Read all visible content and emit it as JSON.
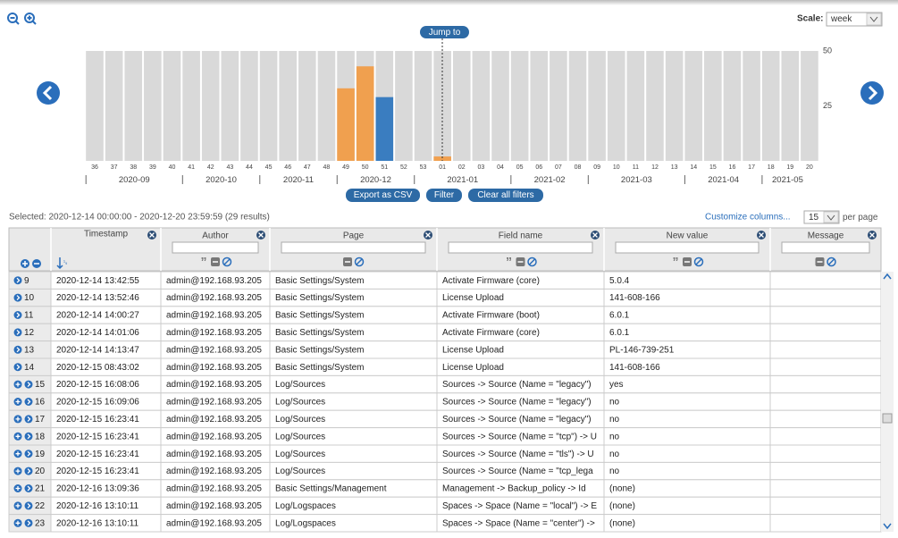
{
  "toolbar": {
    "scale_label": "Scale:",
    "scale": "week"
  },
  "timeline": {
    "jump_to": "Jump to",
    "ylim": [
      0,
      50
    ],
    "yticks": [
      50,
      25
    ],
    "weeks": [
      "36",
      "37",
      "38",
      "39",
      "40",
      "41",
      "42",
      "43",
      "44",
      "45",
      "46",
      "47",
      "48",
      "49",
      "50",
      "51",
      "52",
      "53",
      "01",
      "02",
      "03",
      "04",
      "05",
      "06",
      "07",
      "08",
      "09",
      "10",
      "11",
      "12",
      "13",
      "14",
      "15",
      "16",
      "17",
      "18",
      "19",
      "20"
    ],
    "counts": [
      0,
      0,
      0,
      0,
      0,
      0,
      0,
      0,
      0,
      0,
      0,
      0,
      0,
      33,
      43,
      29,
      0,
      0,
      2,
      0,
      0,
      0,
      0,
      0,
      0,
      0,
      0,
      0,
      0,
      0,
      0,
      0,
      0,
      0,
      0,
      0,
      0,
      0
    ],
    "color": "#f0a04f",
    "selected_week": "51",
    "selected_color": "#3a7dc0",
    "months": [
      "2020-09",
      "2020-10",
      "2020-11",
      "2020-12",
      "2021-01",
      "2021-02",
      "2021-03",
      "2021-04",
      "2021-05"
    ]
  },
  "buttons": [
    "Export as CSV",
    "Filter",
    "Clear all filters"
  ],
  "status": {
    "selection": "Selected: 2020-12-14 00:00:00 - 2020-12-20 23:59:59 (29 results)",
    "customize": "Customize columns...",
    "page_size": "15",
    "per_page": "per page"
  },
  "table": {
    "columns": [
      "Timestamp",
      "Author",
      "Page",
      "Field name",
      "New value",
      "Message"
    ],
    "rows": [
      {
        "id": "9",
        "add": false,
        "cells": [
          "2020-12-14 13:42:55",
          "admin@192.168.93.205",
          "Basic Settings/System",
          "Activate Firmware (core)",
          "5.0.4"
        ]
      },
      {
        "id": "10",
        "add": false,
        "cells": [
          "2020-12-14 13:52:46",
          "admin@192.168.93.205",
          "Basic Settings/System",
          "License Upload",
          "141-608-166"
        ]
      },
      {
        "id": "11",
        "add": false,
        "cells": [
          "2020-12-14 14:00:27",
          "admin@192.168.93.205",
          "Basic Settings/System",
          "Activate Firmware (boot)",
          "6.0.1"
        ]
      },
      {
        "id": "12",
        "add": false,
        "cells": [
          "2020-12-14 14:01:06",
          "admin@192.168.93.205",
          "Basic Settings/System",
          "Activate Firmware (core)",
          "6.0.1"
        ]
      },
      {
        "id": "13",
        "add": false,
        "cells": [
          "2020-12-14 14:13:47",
          "admin@192.168.93.205",
          "Basic Settings/System",
          "License Upload",
          "PL-146-739-251"
        ]
      },
      {
        "id": "14",
        "add": false,
        "cells": [
          "2020-12-15 08:43:02",
          "admin@192.168.93.205",
          "Basic Settings/System",
          "License Upload",
          "141-608-166"
        ]
      },
      {
        "id": "15",
        "add": true,
        "cells": [
          "2020-12-15 16:08:06",
          "admin@192.168.93.205",
          "Log/Sources",
          "Sources -> Source (Name = \"legacy\")",
          "yes"
        ]
      },
      {
        "id": "16",
        "add": true,
        "cells": [
          "2020-12-15 16:09:06",
          "admin@192.168.93.205",
          "Log/Sources",
          "Sources -> Source (Name = \"legacy\")",
          "no"
        ]
      },
      {
        "id": "17",
        "add": true,
        "cells": [
          "2020-12-15 16:23:41",
          "admin@192.168.93.205",
          "Log/Sources",
          "Sources -> Source (Name = \"legacy\")",
          "no"
        ]
      },
      {
        "id": "18",
        "add": true,
        "cells": [
          "2020-12-15 16:23:41",
          "admin@192.168.93.205",
          "Log/Sources",
          "Sources -> Source (Name = \"tcp\") -> U",
          "no"
        ]
      },
      {
        "id": "19",
        "add": true,
        "cells": [
          "2020-12-15 16:23:41",
          "admin@192.168.93.205",
          "Log/Sources",
          "Sources -> Source (Name = \"tls\") -> U",
          "no"
        ]
      },
      {
        "id": "20",
        "add": true,
        "cells": [
          "2020-12-15 16:23:41",
          "admin@192.168.93.205",
          "Log/Sources",
          "Sources -> Source (Name = \"tcp_lega",
          "no"
        ]
      },
      {
        "id": "21",
        "add": true,
        "cells": [
          "2020-12-16 13:09:36",
          "admin@192.168.93.205",
          "Basic Settings/Management",
          "Management -> Backup_policy -> Id",
          "(none)"
        ]
      },
      {
        "id": "22",
        "add": true,
        "cells": [
          "2020-12-16 13:10:11",
          "admin@192.168.93.205",
          "Log/Logspaces",
          "Spaces -> Space (Name = \"local\") -> E",
          "(none)"
        ]
      },
      {
        "id": "23",
        "add": true,
        "cells": [
          "2020-12-16 13:10:11",
          "admin@192.168.93.205",
          "Log/Logspaces",
          "Spaces -> Space (Name = \"center\") ->",
          "(none)"
        ]
      }
    ]
  }
}
